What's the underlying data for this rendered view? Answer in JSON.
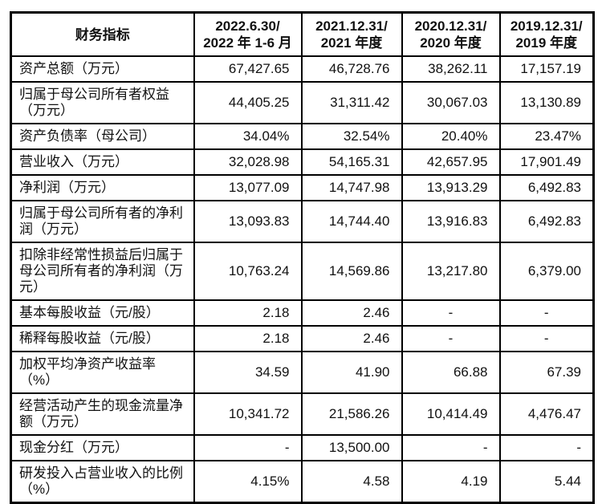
{
  "page": {
    "background": "#ffffff",
    "border_color": "#000000",
    "text_color": "#111111"
  },
  "table": {
    "metric_header": "财务指标",
    "periods": [
      {
        "line1": "2022.6.30/",
        "line2": "2022 年 1-6 月"
      },
      {
        "line1": "2021.12.31/",
        "line2": "2021 年度"
      },
      {
        "line1": "2020.12.31/",
        "line2": "2020 年度"
      },
      {
        "line1": "2019.12.31/",
        "line2": "2019 年度"
      }
    ],
    "rows": [
      {
        "label": "资产总额（万元）",
        "values": [
          "67,427.65",
          "46,728.76",
          "38,262.11",
          "17,157.19"
        ]
      },
      {
        "label": "归属于母公司所有者权益（万元）",
        "values": [
          "44,405.25",
          "31,311.42",
          "30,067.03",
          "13,130.89"
        ]
      },
      {
        "label": "资产负债率（母公司）",
        "values": [
          "34.04%",
          "32.54%",
          "20.40%",
          "23.47%"
        ]
      },
      {
        "label": "营业收入（万元）",
        "values": [
          "32,028.98",
          "54,165.31",
          "42,657.95",
          "17,901.49"
        ]
      },
      {
        "label": "净利润（万元）",
        "values": [
          "13,077.09",
          "14,747.98",
          "13,913.29",
          "6,492.83"
        ]
      },
      {
        "label": "归属于母公司所有者的净利润（万元）",
        "values": [
          "13,093.83",
          "14,744.40",
          "13,916.83",
          "6,492.83"
        ]
      },
      {
        "label": "扣除非经常性损益后归属于母公司所有者的净利润（万元）",
        "values": [
          "10,763.24",
          "14,569.86",
          "13,217.80",
          "6,379.00"
        ]
      },
      {
        "label": "基本每股收益（元/股）",
        "values": [
          "2.18",
          "2.46",
          "-",
          "-"
        ],
        "aligns": [
          "right",
          "right",
          "center",
          "center"
        ]
      },
      {
        "label": "稀释每股收益（元/股）",
        "values": [
          "2.18",
          "2.46",
          "-",
          "-"
        ],
        "aligns": [
          "right",
          "right",
          "center",
          "center"
        ]
      },
      {
        "label": "加权平均净资产收益率（%）",
        "values": [
          "34.59",
          "41.90",
          "66.88",
          "67.39"
        ]
      },
      {
        "label": "经营活动产生的现金流量净额（万元）",
        "values": [
          "10,341.72",
          "21,586.26",
          "10,414.49",
          "4,476.47"
        ]
      },
      {
        "label": "现金分红（万元）",
        "values": [
          "-",
          "13,500.00",
          "-",
          "-"
        ]
      },
      {
        "label": "研发投入占营业收入的比例（%）",
        "values": [
          "4.15%",
          "4.58",
          "4.19",
          "5.44"
        ]
      }
    ]
  }
}
